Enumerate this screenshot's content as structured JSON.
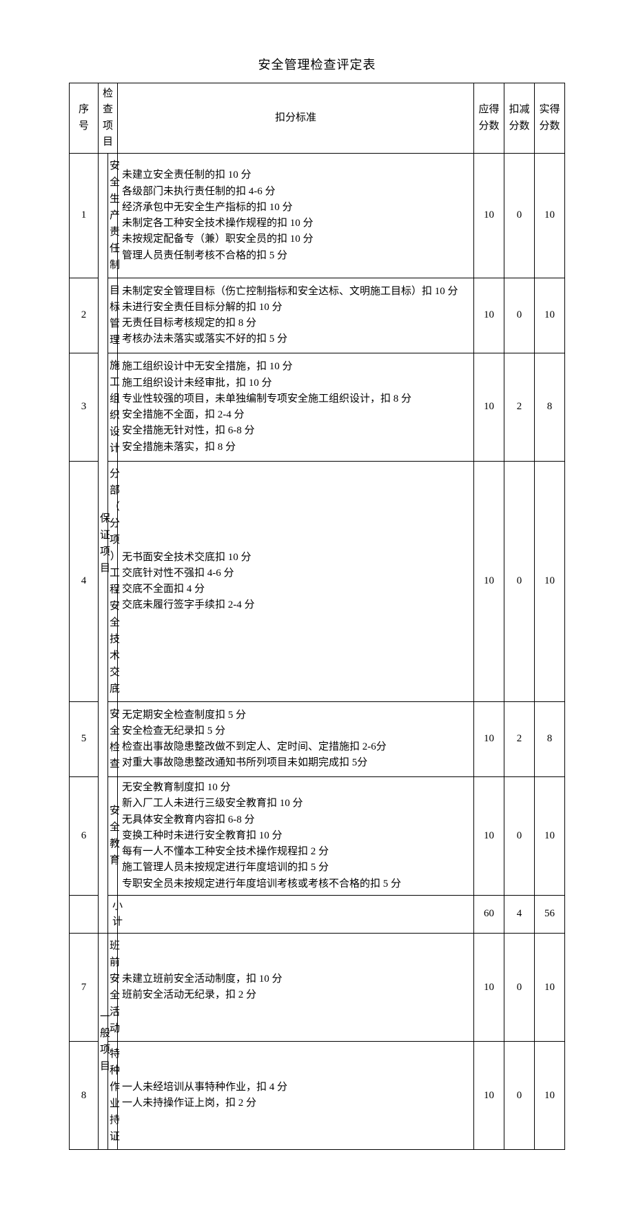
{
  "title": "安全管理检查评定表",
  "headers": {
    "seq": "序号",
    "item": "检查项目",
    "criteria": "扣分标准",
    "max": "应得分数",
    "deduct": "扣减分数",
    "actual": "实得分数"
  },
  "category1": "保证项目",
  "category2": "一般项目",
  "rows": {
    "r1": {
      "seq": "1",
      "item": "安全生产责任制",
      "criteria": "未建立安全责任制的扣 10 分\n各级部门未执行责任制的扣 4-6 分\n经济承包中无安全生产指标的扣 10 分\n未制定各工种安全技术操作规程的扣 10 分\n未按规定配备专（兼）职安全员的扣 10 分\n管理人员责任制考核不合格的扣 5 分",
      "max": "10",
      "deduct": "0",
      "actual": "10"
    },
    "r2": {
      "seq": "2",
      "item": "目标管理",
      "criteria": "未制定安全管理目标（伤亡控制指标和安全达标、文明施工目标）扣 10 分\n未进行安全责任目标分解的扣 10 分\n无责任目标考核规定的扣 8 分\n考核办法未落实或落实不好的扣 5 分",
      "max": "10",
      "deduct": "0",
      "actual": "10"
    },
    "r3": {
      "seq": "3",
      "item": "施工组织设计",
      "criteria": "施工组织设计中无安全措施，扣 10 分\n施工组织设计未经审批，扣 10 分\n专业性较强的项目，未单独编制专项安全施工组织设计，扣 8 分\n安全措施不全面，扣 2-4 分\n安全措施无针对性，扣 6-8 分\n安全措施未落实，扣 8 分",
      "max": "10",
      "deduct": "2",
      "actual": "8"
    },
    "r4": {
      "seq": "4",
      "item": "分 部（ 分项 ）工 程安 全技 术交底",
      "criteria": "无书面安全技术交底扣 10 分\n交底针对性不强扣 4-6 分\n交底不全面扣 4 分\n交底未履行签字手续扣 2-4 分",
      "max": "10",
      "deduct": "0",
      "actual": "10"
    },
    "r5": {
      "seq": "5",
      "item": "安全检查",
      "criteria": "无定期安全检查制度扣 5 分\n安全检查无纪录扣 5 分\n检查出事故隐患整改做不到定人、定时间、定措施扣 2-6分\n对重大事故隐患整改通知书所列项目未如期完成扣 5分",
      "max": "10",
      "deduct": "2",
      "actual": "8"
    },
    "r6": {
      "seq": "6",
      "item": "安全教育",
      "criteria": "无安全教育制度扣 10 分\n新入厂工人未进行三级安全教育扣 10 分\n无具体安全教育内容扣 6-8 分\n变换工种时未进行安全教育扣 10 分\n每有一人不懂本工种安全技术操作规程扣 2 分\n施工管理人员未按规定进行年度培训的扣 5 分\n专职安全员未按规定进行年度培训考核或考核不合格的扣 5 分",
      "max": "10",
      "deduct": "0",
      "actual": "10"
    },
    "subtotal": {
      "item": "小计",
      "max": "60",
      "deduct": "4",
      "actual": "56"
    },
    "r7": {
      "seq": "7",
      "item": "班前安全活动",
      "criteria": "未建立班前安全活动制度，扣 10 分\n班前安全活动无纪录，扣 2 分",
      "max": "10",
      "deduct": "0",
      "actual": "10"
    },
    "r8": {
      "seq": "8",
      "item": "特种作业持证",
      "criteria": "一人未经培训从事特种作业，扣 4 分\n一人未持操作证上岗，扣 2 分",
      "max": "10",
      "deduct": "0",
      "actual": "10"
    }
  }
}
